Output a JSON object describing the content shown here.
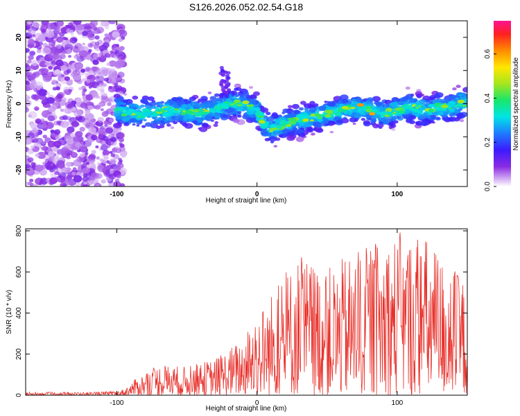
{
  "title": "S126.2026.052.02.54.G18",
  "chart_data": [
    {
      "type": "heatmap",
      "xlabel": "Height of straight line (km)",
      "ylabel": "Frequency (Hz)",
      "xlim": [
        -165,
        150
      ],
      "ylim": [
        -25,
        25
      ],
      "xticks": [
        "-100",
        "0",
        "100"
      ],
      "yticks": [
        "-20",
        "-10",
        "0",
        "10",
        "20"
      ],
      "colorbar": {
        "label": "Normalized spectral amplitude",
        "range": [
          0,
          0.75
        ],
        "ticks": [
          "0.0",
          "0.2",
          "0.4",
          "0.6"
        ]
      },
      "ridge": {
        "description": "frequency of strongest signal vs height",
        "x": [
          -100,
          -90,
          -80,
          -60,
          -40,
          -25,
          -20,
          -10,
          0,
          5,
          10,
          20,
          30,
          40,
          50,
          60,
          70,
          80,
          90,
          100,
          110,
          120,
          130,
          140,
          145
        ],
        "y": [
          -2,
          -3,
          -3,
          -2,
          -3,
          -1,
          0,
          0,
          -2,
          -6,
          -8,
          -6,
          -5,
          -4,
          -3,
          -2,
          -1,
          -2,
          -3,
          -2,
          -1,
          -2,
          -1,
          -1,
          0
        ]
      },
      "noise_region_x": [
        -165,
        -95
      ]
    },
    {
      "type": "line",
      "xlabel": "Height of straight line (km)",
      "ylabel": "SNR (10 * v/v)",
      "xlim": [
        -165,
        150
      ],
      "ylim": [
        0,
        810
      ],
      "xticks": [
        "-100",
        "0",
        "100"
      ],
      "yticks": [
        "0",
        "200",
        "400",
        "600",
        "800"
      ],
      "series_color": "#e8302a",
      "envelope": {
        "x": [
          -165,
          -120,
          -100,
          -95,
          -85,
          -70,
          -50,
          -30,
          -10,
          0,
          10,
          30,
          50,
          70,
          100,
          120,
          140,
          150
        ],
        "y_max": [
          15,
          15,
          20,
          30,
          90,
          150,
          140,
          180,
          280,
          400,
          500,
          690,
          620,
          700,
          800,
          780,
          620,
          560
        ]
      }
    }
  ]
}
